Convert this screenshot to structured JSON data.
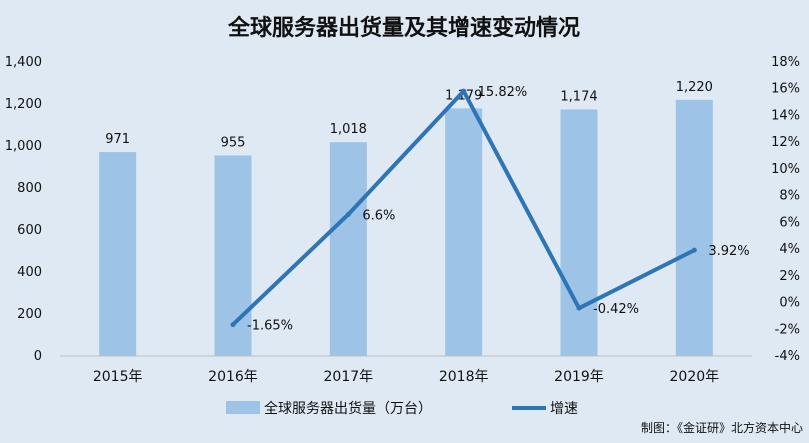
{
  "chart_data": {
    "type": "bar",
    "title": "全球服务器出货量及其增速变动情况",
    "categories": [
      "2015年",
      "2016年",
      "2017年",
      "2018年",
      "2019年",
      "2020年"
    ],
    "series": [
      {
        "name": "全球服务器出货量（万台）",
        "type": "bar",
        "axis": "left",
        "color": "#9dc3e6",
        "values": [
          971,
          955,
          1018,
          1179,
          1174,
          1220
        ],
        "labels": [
          "971",
          "955",
          "1,018",
          "1,179",
          "1,174",
          "1,220"
        ]
      },
      {
        "name": "增速",
        "type": "line",
        "axis": "right",
        "color": "#2e75b6",
        "values": [
          null,
          -1.65,
          6.6,
          15.82,
          -0.42,
          3.92
        ],
        "labels": [
          "",
          "-1.65%",
          "6.6%",
          "15.82%",
          "-0.42%",
          "3.92%"
        ]
      }
    ],
    "y_left": {
      "range": [
        0,
        1400
      ],
      "ticks": [
        0,
        200,
        400,
        600,
        800,
        1000,
        1200,
        1400
      ],
      "tick_labels": [
        "0",
        "200",
        "400",
        "600",
        "800",
        "1,000",
        "1,200",
        "1,400"
      ]
    },
    "y_right": {
      "range": [
        -4,
        18
      ],
      "ticks": [
        -4,
        -2,
        0,
        2,
        4,
        6,
        8,
        10,
        12,
        14,
        16,
        18
      ],
      "tick_labels": [
        "-4%",
        "-2%",
        "0%",
        "2%",
        "4%",
        "6%",
        "8%",
        "10%",
        "12%",
        "14%",
        "16%",
        "18%"
      ]
    },
    "grid": false,
    "legend_position": "bottom",
    "source": "制图：《金证研》北方资本中心"
  }
}
